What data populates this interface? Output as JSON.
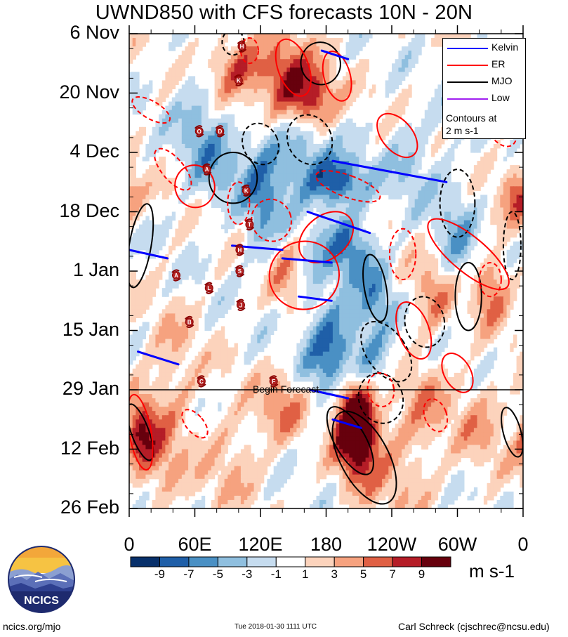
{
  "chart_data": {
    "type": "heatmap",
    "title": "UWND850 with CFS forecasts  10N - 20N",
    "xlabel": "",
    "ylabel": "",
    "x_ticks": [
      "0",
      "60E",
      "120E",
      "180",
      "120W",
      "60W",
      "0"
    ],
    "y_ticks": [
      "6 Nov",
      "20 Nov",
      "4 Dec",
      "18 Dec",
      "1 Jan",
      "15 Jan",
      "29 Jan",
      "12 Feb",
      "26 Feb"
    ],
    "x_range_deg_east": [
      0,
      360
    ],
    "y_range_days_from_6_nov": [
      0,
      112
    ],
    "forecast_start_day": 84,
    "forecast_label": "Begin Forecast",
    "shading_variable": "850-hPa zonal wind anomaly",
    "colorbar": {
      "levels": [
        -9,
        -7,
        -5,
        -3,
        -1,
        1,
        3,
        5,
        7,
        9
      ],
      "tick_labels": [
        "-9",
        "-7",
        "-5",
        "-3",
        "-1",
        "1",
        "3",
        "5",
        "7",
        "9"
      ],
      "colors": [
        "#08306b",
        "#1f5fa8",
        "#4a90c4",
        "#8fbfdf",
        "#c6dcef",
        "#ffffff",
        "#fcd3bc",
        "#f6a27f",
        "#e06044",
        "#b51d27",
        "#67000d"
      ],
      "units": "m s-1"
    },
    "legend": {
      "entries": [
        {
          "name": "Kelvin",
          "color": "#0000ff"
        },
        {
          "name": "ER",
          "color": "#ff0000"
        },
        {
          "name": "MJO",
          "color": "#000000"
        },
        {
          "name": "Low",
          "color": "#a020f0"
        }
      ],
      "note_line1": "Contours at",
      "note_line2": "2 m s-1",
      "placement": "top-right"
    },
    "storm_markers": [
      {
        "label": "H",
        "lon": 103,
        "day": 3
      },
      {
        "label": "K",
        "lon": 100,
        "day": 11
      },
      {
        "label": "O",
        "lon": 64,
        "day": 23
      },
      {
        "label": "D",
        "lon": 83,
        "day": 23
      },
      {
        "label": "A",
        "lon": 71,
        "day": 32
      },
      {
        "label": "K",
        "lon": 107,
        "day": 37
      },
      {
        "label": "T",
        "lon": 110,
        "day": 45
      },
      {
        "label": "H",
        "lon": 101,
        "day": 51
      },
      {
        "label": "S",
        "lon": 101,
        "day": 56
      },
      {
        "label": "A",
        "lon": 43,
        "day": 57
      },
      {
        "label": "L",
        "lon": 73,
        "day": 60
      },
      {
        "label": "J",
        "lon": 102,
        "day": 64
      },
      {
        "label": "B",
        "lon": 55,
        "day": 68
      },
      {
        "label": "C",
        "lon": 66,
        "day": 82
      },
      {
        "label": "F",
        "lon": 132,
        "day": 82
      }
    ]
  },
  "footer": {
    "left": "ncics.org/mjo",
    "middle": "Tue 2018-01-30 1111 UTC",
    "right": "Carl Schreck (cjschrec@ncsu.edu)"
  },
  "logo": {
    "text": "NCICS"
  },
  "colors": {
    "kelvin": "#0000ff",
    "er": "#ff0000",
    "mjo": "#000000",
    "low": "#a020f0"
  }
}
